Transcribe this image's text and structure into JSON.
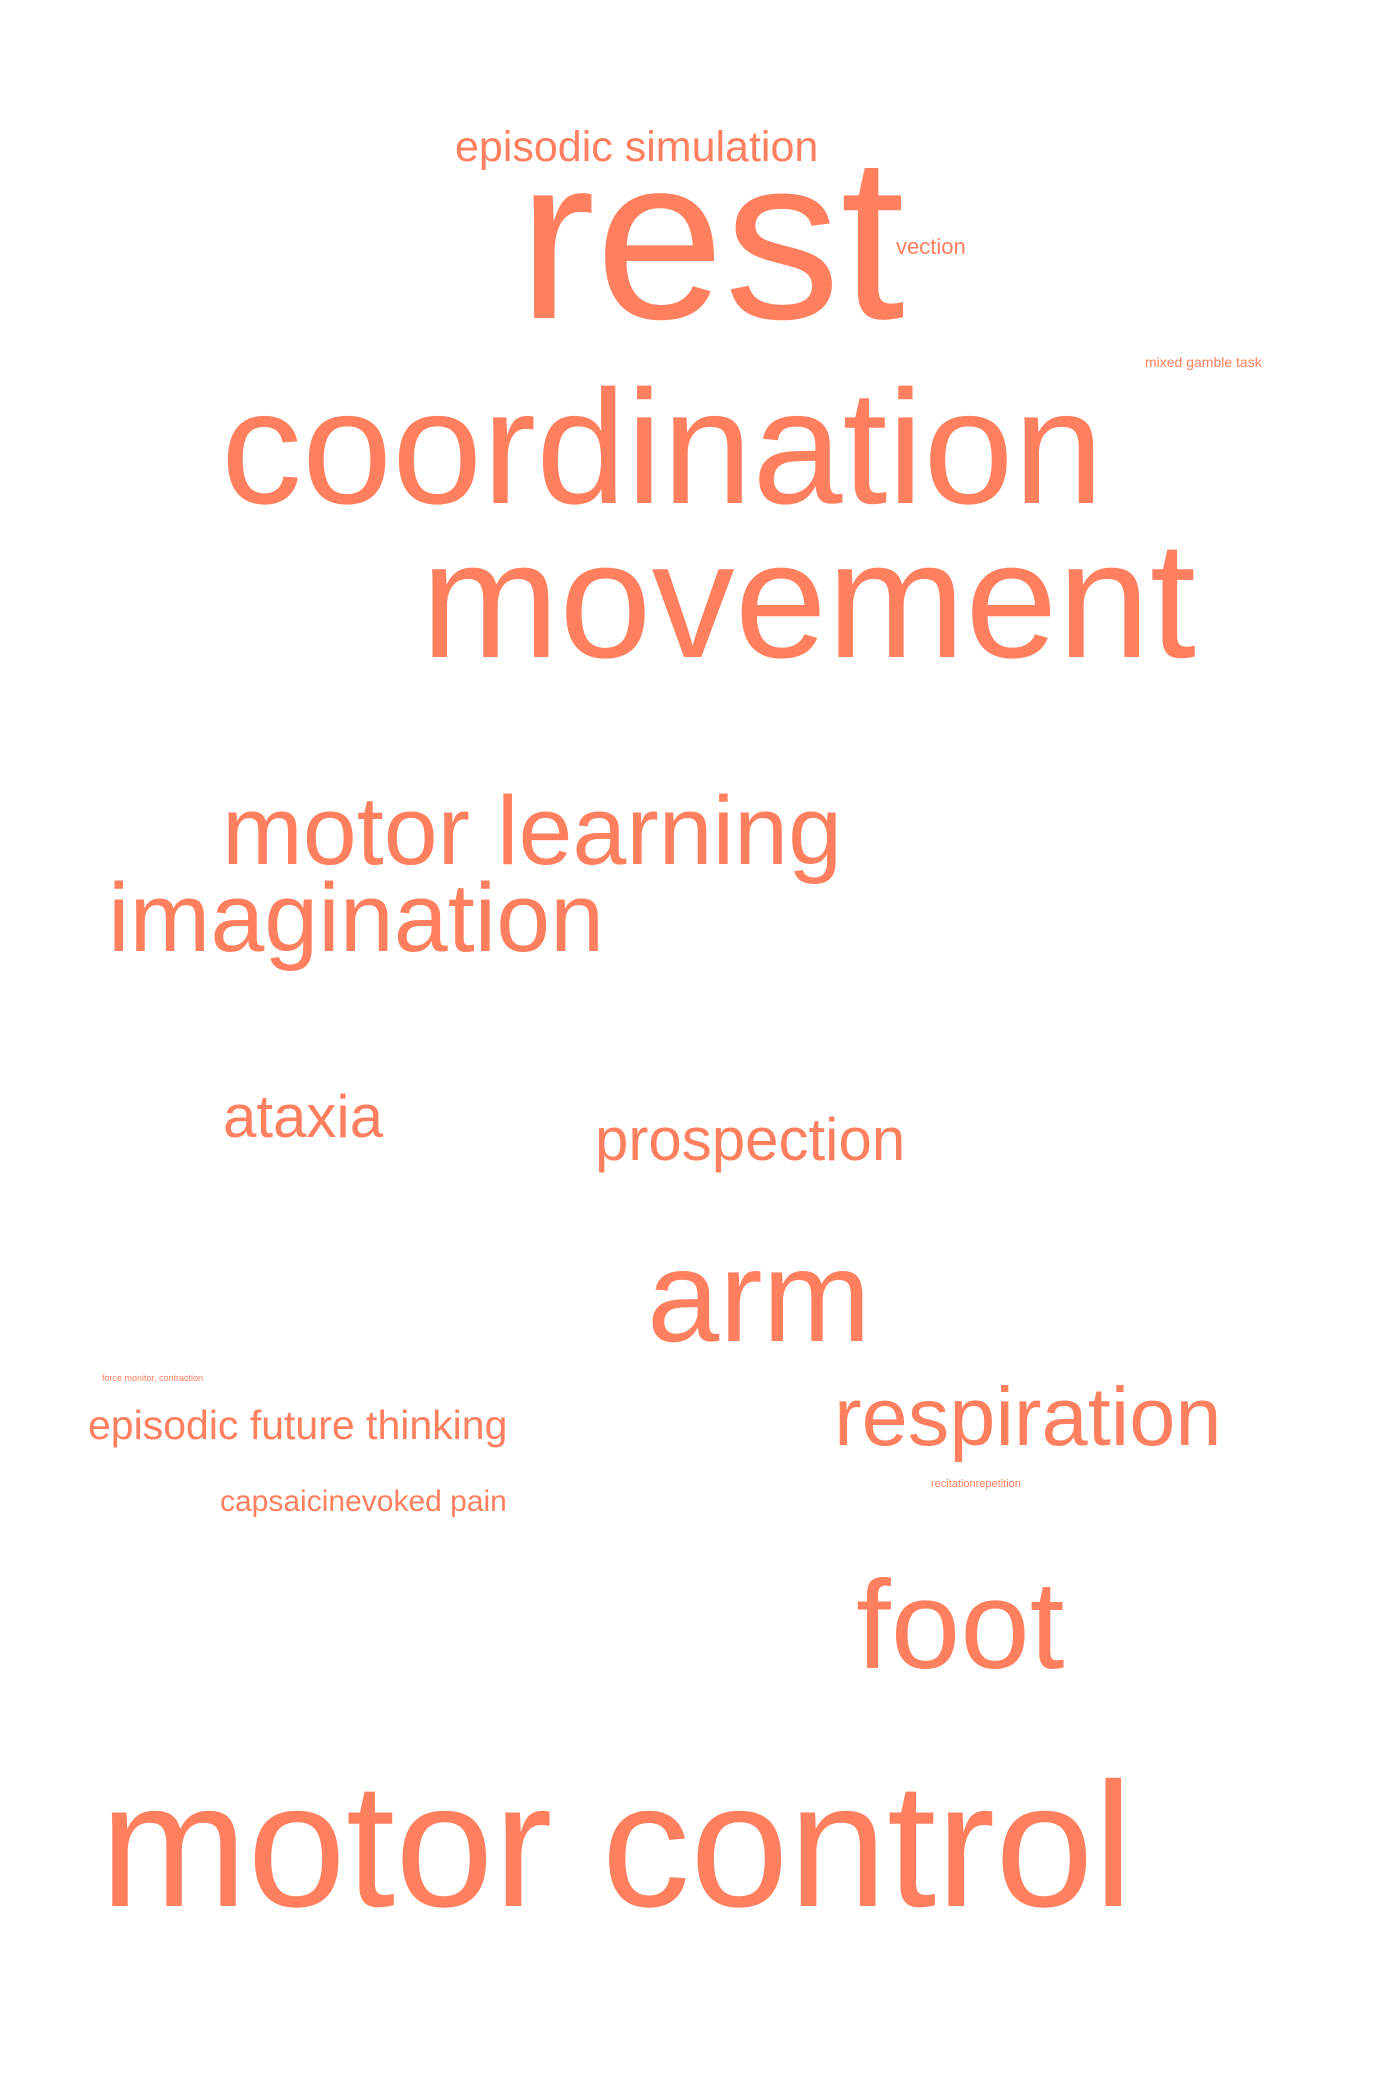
{
  "color": "#FF7F5E",
  "words": {
    "episodic_simulation": "episodic simulation",
    "rest": "rest",
    "vection": "vection",
    "mixed_gamble_task": "mixed gamble task",
    "coordination": "coordination",
    "movement": "movement",
    "motor_learning": "motor learning",
    "imagination": "imagination",
    "ataxia": "ataxia",
    "prospection": "prospection",
    "arm": "arm",
    "force_monitor": "force monitor, contraction",
    "episodic_future_thinking": "episodic future thinking",
    "respiration": "respiration",
    "capsaicin_evoked_pain": "capsaicinevoked pain",
    "recitation_repetition": "recitationrepetition",
    "foot": "foot",
    "motor_control": "motor control"
  }
}
